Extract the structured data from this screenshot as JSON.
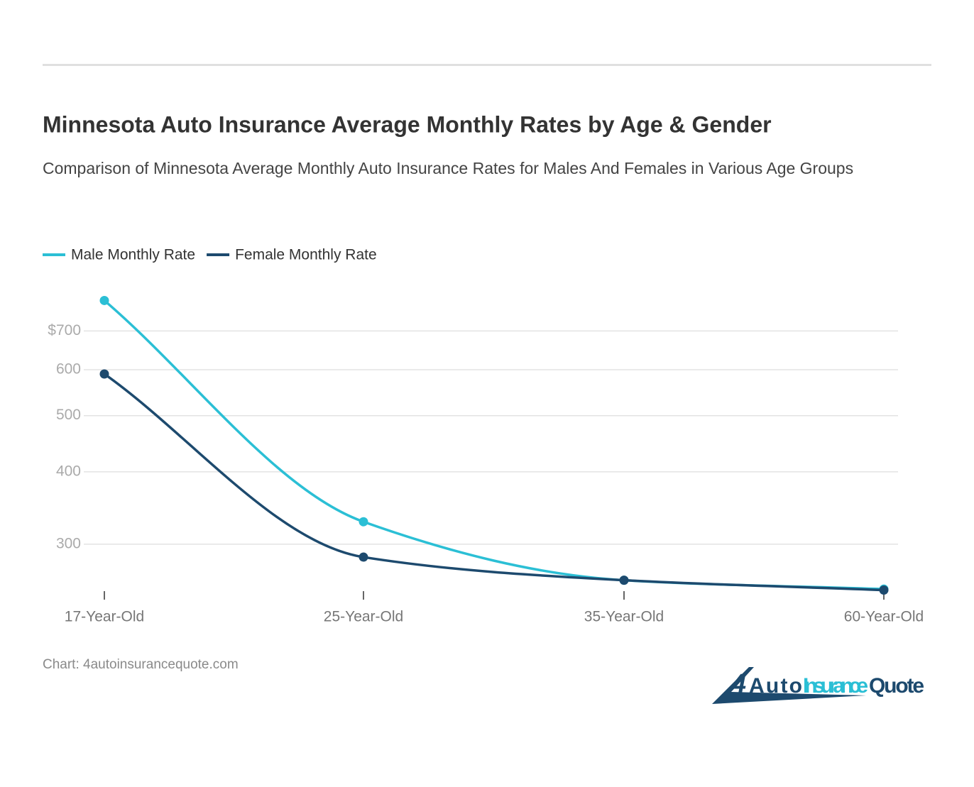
{
  "chart_data": {
    "type": "line",
    "title": "Minnesota Auto Insurance Average Monthly Rates by Age & Gender",
    "subtitle": "Comparison of Minnesota Average Monthly Auto Insurance Rates for Males And Females in Various Age Groups",
    "categories": [
      "17-Year-Old",
      "25-Year-Old",
      "35-Year-Old",
      "60-Year-Old"
    ],
    "series": [
      {
        "name": "Male Monthly Rate",
        "color": "#2bbfd5",
        "values": [
          790,
          328,
          260,
          251
        ]
      },
      {
        "name": "Female Monthly Rate",
        "color": "#1d4a6e",
        "values": [
          590,
          285,
          260,
          250
        ]
      }
    ],
    "ylim": [
      240,
      800
    ],
    "yticks": [
      300,
      400,
      500,
      600,
      {
        "value": 700,
        "label": "$700"
      }
    ],
    "log_scale": true,
    "grid": true,
    "legend": "top-left",
    "source": "Chart: 4autoinsurancequote.com"
  },
  "logo": {
    "number": "4",
    "text_dark": "Auto",
    "text_light": "Insurance",
    "text_end": "Quote"
  }
}
